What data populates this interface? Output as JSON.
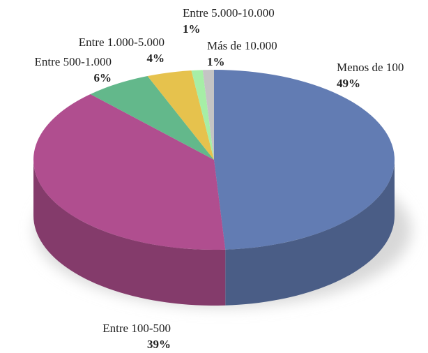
{
  "chart_data": {
    "type": "pie",
    "categories": [
      "Menos de 100",
      "Entre 100-500",
      "Entre 500-1.000",
      "Entre 1.000-5.000",
      "Entre 5.000-10.000",
      "Más de 10.000"
    ],
    "values": [
      49,
      39,
      6,
      4,
      1,
      1
    ],
    "value_labels": [
      "49%",
      "39%",
      "6%",
      "4%",
      "1%",
      "1%"
    ],
    "colors": [
      "#627cb3",
      "#b04e8f",
      "#63b88b",
      "#e6c24d",
      "#a6eea6",
      "#c4c4c4"
    ]
  }
}
